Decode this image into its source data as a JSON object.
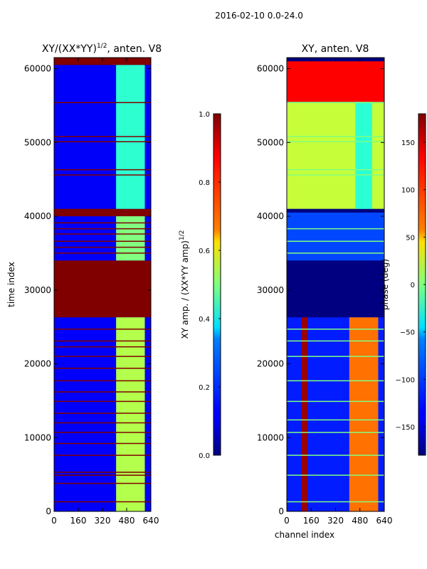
{
  "chart_data": [
    {
      "type": "heatmap",
      "suptitle": "2016-02-10 0.0-24.0",
      "title": "XY/(XX*YY)^1/2, anten. V8",
      "title_main": "XY/(XX*YY)",
      "title_sup": "1/2",
      "title_tail": ", anten. V8",
      "xlabel": "",
      "ylabel": "time index",
      "xlim": [
        0,
        640
      ],
      "ylim": [
        0,
        61500
      ],
      "x_ticks": [
        0,
        160,
        320,
        480,
        640
      ],
      "y_ticks": [
        0,
        10000,
        20000,
        30000,
        40000,
        50000,
        60000
      ],
      "colorbar": {
        "label": "XY amp. / (XX*YY amp)^1/2",
        "label_main": "XY amp. / (XX*YY amp)",
        "label_sup": "1/2",
        "range": [
          0.0,
          1.0
        ],
        "ticks": [
          "0.0",
          "0.2",
          "0.4",
          "0.6",
          "0.8",
          "1.0"
        ],
        "tick_values": [
          0.0,
          0.2,
          0.4,
          0.6,
          0.8,
          1.0
        ],
        "colormap": "jet"
      },
      "background_value": 0.12,
      "regions": [
        {
          "name": "flagged-block",
          "t_start": 26300,
          "t_end": 34000,
          "ch_start": 0,
          "ch_end": 640,
          "value": 1.0
        },
        {
          "name": "dense-flag-band",
          "t_start": 40000,
          "t_end": 41000,
          "ch_start": 0,
          "ch_end": 640,
          "value": 1.0
        },
        {
          "name": "top-flag-band",
          "t_start": 60500,
          "t_end": 61500,
          "ch_start": 0,
          "ch_end": 640,
          "value": 1.0
        },
        {
          "name": "signal-band-low",
          "t_start": 0,
          "t_end": 26300,
          "ch_start": 410,
          "ch_end": 600,
          "value": 0.55
        },
        {
          "name": "signal-band-mid",
          "t_start": 34000,
          "t_end": 40000,
          "ch_start": 410,
          "ch_end": 600,
          "value": 0.5
        },
        {
          "name": "signal-band-high",
          "t_start": 41000,
          "t_end": 60500,
          "ch_start": 410,
          "ch_end": 600,
          "value": 0.42
        }
      ],
      "flag_rows": [
        1300,
        3800,
        4900,
        5300,
        7600,
        9200,
        10700,
        12000,
        13300,
        14900,
        16200,
        17700,
        19400,
        21000,
        22300,
        23100,
        24700,
        35000,
        35800,
        36600,
        37600,
        38300,
        39100,
        45600,
        46300,
        50100,
        50800,
        55400
      ]
    },
    {
      "type": "heatmap",
      "title": "XY, anten. V8",
      "xlabel": "channel index",
      "ylabel": "",
      "xlim": [
        0,
        640
      ],
      "ylim": [
        0,
        61500
      ],
      "x_ticks": [
        0,
        160,
        320,
        480,
        640
      ],
      "y_ticks": [
        0,
        10000,
        20000,
        30000,
        40000,
        50000,
        60000
      ],
      "colorbar": {
        "label": "phase (deg)",
        "range": [
          -180,
          180
        ],
        "ticks": [
          "−150",
          "−100",
          "−50",
          "0",
          "50",
          "100",
          "150"
        ],
        "tick_values": [
          -150,
          -100,
          -50,
          0,
          50,
          100,
          150
        ],
        "colormap": "jet"
      },
      "regions": [
        {
          "name": "upper-phase-block",
          "t_start": 55500,
          "t_end": 61000,
          "ch_start": 0,
          "ch_end": 640,
          "value": 135
        },
        {
          "name": "upper-mid-block",
          "t_start": 41000,
          "t_end": 55500,
          "ch_start": 0,
          "ch_end": 640,
          "value": 25
        },
        {
          "name": "flagged-block",
          "t_start": 26300,
          "t_end": 34000,
          "ch_start": 0,
          "ch_end": 640,
          "value": -180
        },
        {
          "name": "scatter-block",
          "t_start": 34000,
          "t_end": 40500,
          "ch_start": 0,
          "ch_end": 640,
          "value": -110
        },
        {
          "name": "lower-block",
          "t_start": 0,
          "t_end": 26300,
          "ch_start": 0,
          "ch_end": 640,
          "value": -125
        },
        {
          "name": "red-channel-stripe",
          "t_start": 0,
          "t_end": 26300,
          "ch_start": 95,
          "ch_end": 135,
          "value": 170
        },
        {
          "name": "signal-band-phase",
          "t_start": 0,
          "t_end": 26300,
          "ch_start": 410,
          "ch_end": 600,
          "value": 95
        },
        {
          "name": "upper-signal-band",
          "t_start": 41000,
          "t_end": 55500,
          "ch_start": 450,
          "ch_end": 560,
          "value": -30
        }
      ],
      "flag_rows": [
        1300,
        4900,
        7600,
        10700,
        12400,
        14900,
        17700,
        21000,
        23100,
        24700,
        35000,
        36600,
        38300,
        45600,
        46300,
        50100,
        50800,
        55400
      ]
    }
  ]
}
